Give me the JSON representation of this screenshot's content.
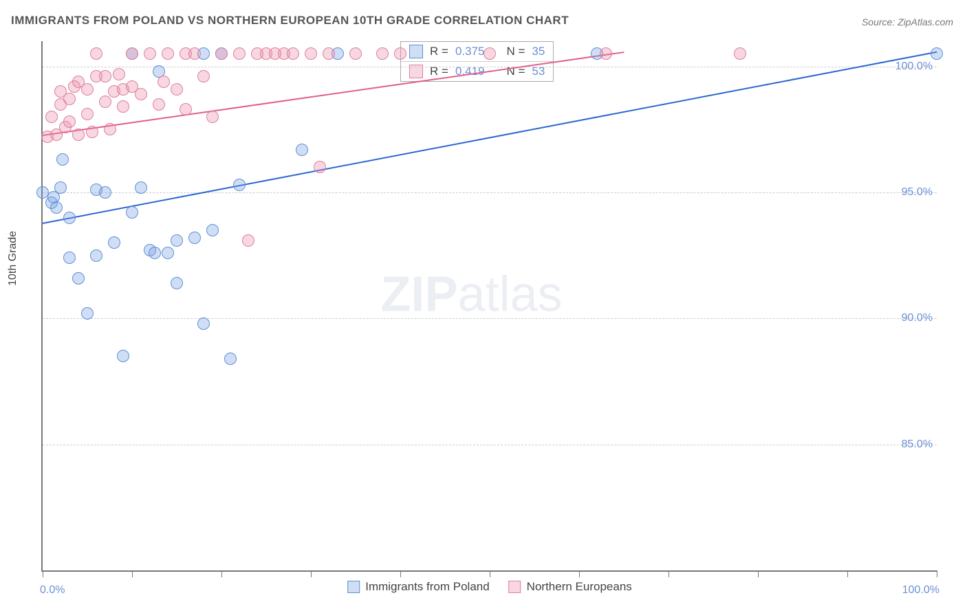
{
  "title": "IMMIGRANTS FROM POLAND VS NORTHERN EUROPEAN 10TH GRADE CORRELATION CHART",
  "source": "Source: ZipAtlas.com",
  "ylabel": "10th Grade",
  "watermark_bold": "ZIP",
  "watermark_light": "atlas",
  "chart": {
    "type": "scatter",
    "xlim": [
      0,
      100
    ],
    "ylim": [
      80,
      101
    ],
    "ytick_values": [
      85,
      90,
      95,
      100
    ],
    "ytick_labels": [
      "85.0%",
      "90.0%",
      "95.0%",
      "100.0%"
    ],
    "xtick_values": [
      0,
      10,
      20,
      30,
      40,
      50,
      60,
      70,
      80,
      90,
      100
    ],
    "xtick_label_left": "0.0%",
    "xtick_label_right": "100.0%",
    "grid_color": "#cccccc",
    "axis_color": "#777777",
    "background_color": "#ffffff",
    "series": [
      {
        "name": "Immigrants from Poland",
        "fill": "rgba(120,160,225,0.35)",
        "stroke": "#5c8fd6",
        "line_color": "#2a66d1",
        "r_label": "R =",
        "r_value": "0.375",
        "n_label": "N =",
        "n_value": "35",
        "trend": {
          "x1": 0,
          "y1": 93.8,
          "x2": 100,
          "y2": 100.6
        },
        "points": [
          [
            0,
            95
          ],
          [
            1,
            94.6
          ],
          [
            1.2,
            94.8
          ],
          [
            1.5,
            94.4
          ],
          [
            2,
            95.2
          ],
          [
            2.2,
            96.3
          ],
          [
            3,
            94
          ],
          [
            3,
            92.4
          ],
          [
            4,
            91.6
          ],
          [
            5,
            90.2
          ],
          [
            6,
            95.1
          ],
          [
            6,
            92.5
          ],
          [
            7,
            95
          ],
          [
            8,
            93
          ],
          [
            9,
            88.5
          ],
          [
            10,
            94.2
          ],
          [
            10,
            100.5
          ],
          [
            11,
            95.2
          ],
          [
            12,
            92.7
          ],
          [
            12.5,
            92.6
          ],
          [
            13,
            99.8
          ],
          [
            14,
            92.6
          ],
          [
            15,
            93.1
          ],
          [
            15,
            91.4
          ],
          [
            17,
            93.2
          ],
          [
            18,
            89.8
          ],
          [
            18,
            100.5
          ],
          [
            19,
            93.5
          ],
          [
            20,
            100.5
          ],
          [
            21,
            88.4
          ],
          [
            22,
            95.3
          ],
          [
            29,
            96.7
          ],
          [
            33,
            100.5
          ],
          [
            62,
            100.5
          ],
          [
            100,
            100.5
          ]
        ]
      },
      {
        "name": "Northern Europeans",
        "fill": "rgba(235,140,165,0.35)",
        "stroke": "#dd7fa0",
        "line_color": "#e15f8b",
        "r_label": "R =",
        "r_value": "0.419",
        "n_label": "N =",
        "n_value": "53",
        "trend": {
          "x1": 0,
          "y1": 97.3,
          "x2": 65,
          "y2": 100.6
        },
        "points": [
          [
            0.5,
            97.2
          ],
          [
            1,
            98
          ],
          [
            1.5,
            97.3
          ],
          [
            2,
            99
          ],
          [
            2,
            98.5
          ],
          [
            2.5,
            97.6
          ],
          [
            3,
            97.8
          ],
          [
            3,
            98.7
          ],
          [
            3.5,
            99.2
          ],
          [
            4,
            97.3
          ],
          [
            4,
            99.4
          ],
          [
            5,
            98.1
          ],
          [
            5,
            99.1
          ],
          [
            5.5,
            97.4
          ],
          [
            6,
            100.5
          ],
          [
            6,
            99.6
          ],
          [
            7,
            98.6
          ],
          [
            7,
            99.6
          ],
          [
            7.5,
            97.5
          ],
          [
            8,
            99
          ],
          [
            8.5,
            99.7
          ],
          [
            9,
            98.4
          ],
          [
            9,
            99.1
          ],
          [
            10,
            99.2
          ],
          [
            10,
            100.5
          ],
          [
            11,
            98.9
          ],
          [
            12,
            100.5
          ],
          [
            13,
            98.5
          ],
          [
            13.5,
            99.4
          ],
          [
            14,
            100.5
          ],
          [
            15,
            99.1
          ],
          [
            16,
            98.3
          ],
          [
            16,
            100.5
          ],
          [
            17,
            100.5
          ],
          [
            18,
            99.6
          ],
          [
            19,
            98
          ],
          [
            20,
            100.5
          ],
          [
            22,
            100.5
          ],
          [
            23,
            93.1
          ],
          [
            24,
            100.5
          ],
          [
            25,
            100.5
          ],
          [
            26,
            100.5
          ],
          [
            27,
            100.5
          ],
          [
            28,
            100.5
          ],
          [
            30,
            100.5
          ],
          [
            31,
            96
          ],
          [
            32,
            100.5
          ],
          [
            35,
            100.5
          ],
          [
            38,
            100.5
          ],
          [
            40,
            100.5
          ],
          [
            50,
            100.5
          ],
          [
            63,
            100.5
          ],
          [
            78,
            100.5
          ]
        ]
      }
    ]
  },
  "legend": {
    "series1": "Immigrants from Poland",
    "series2": "Northern Europeans"
  }
}
